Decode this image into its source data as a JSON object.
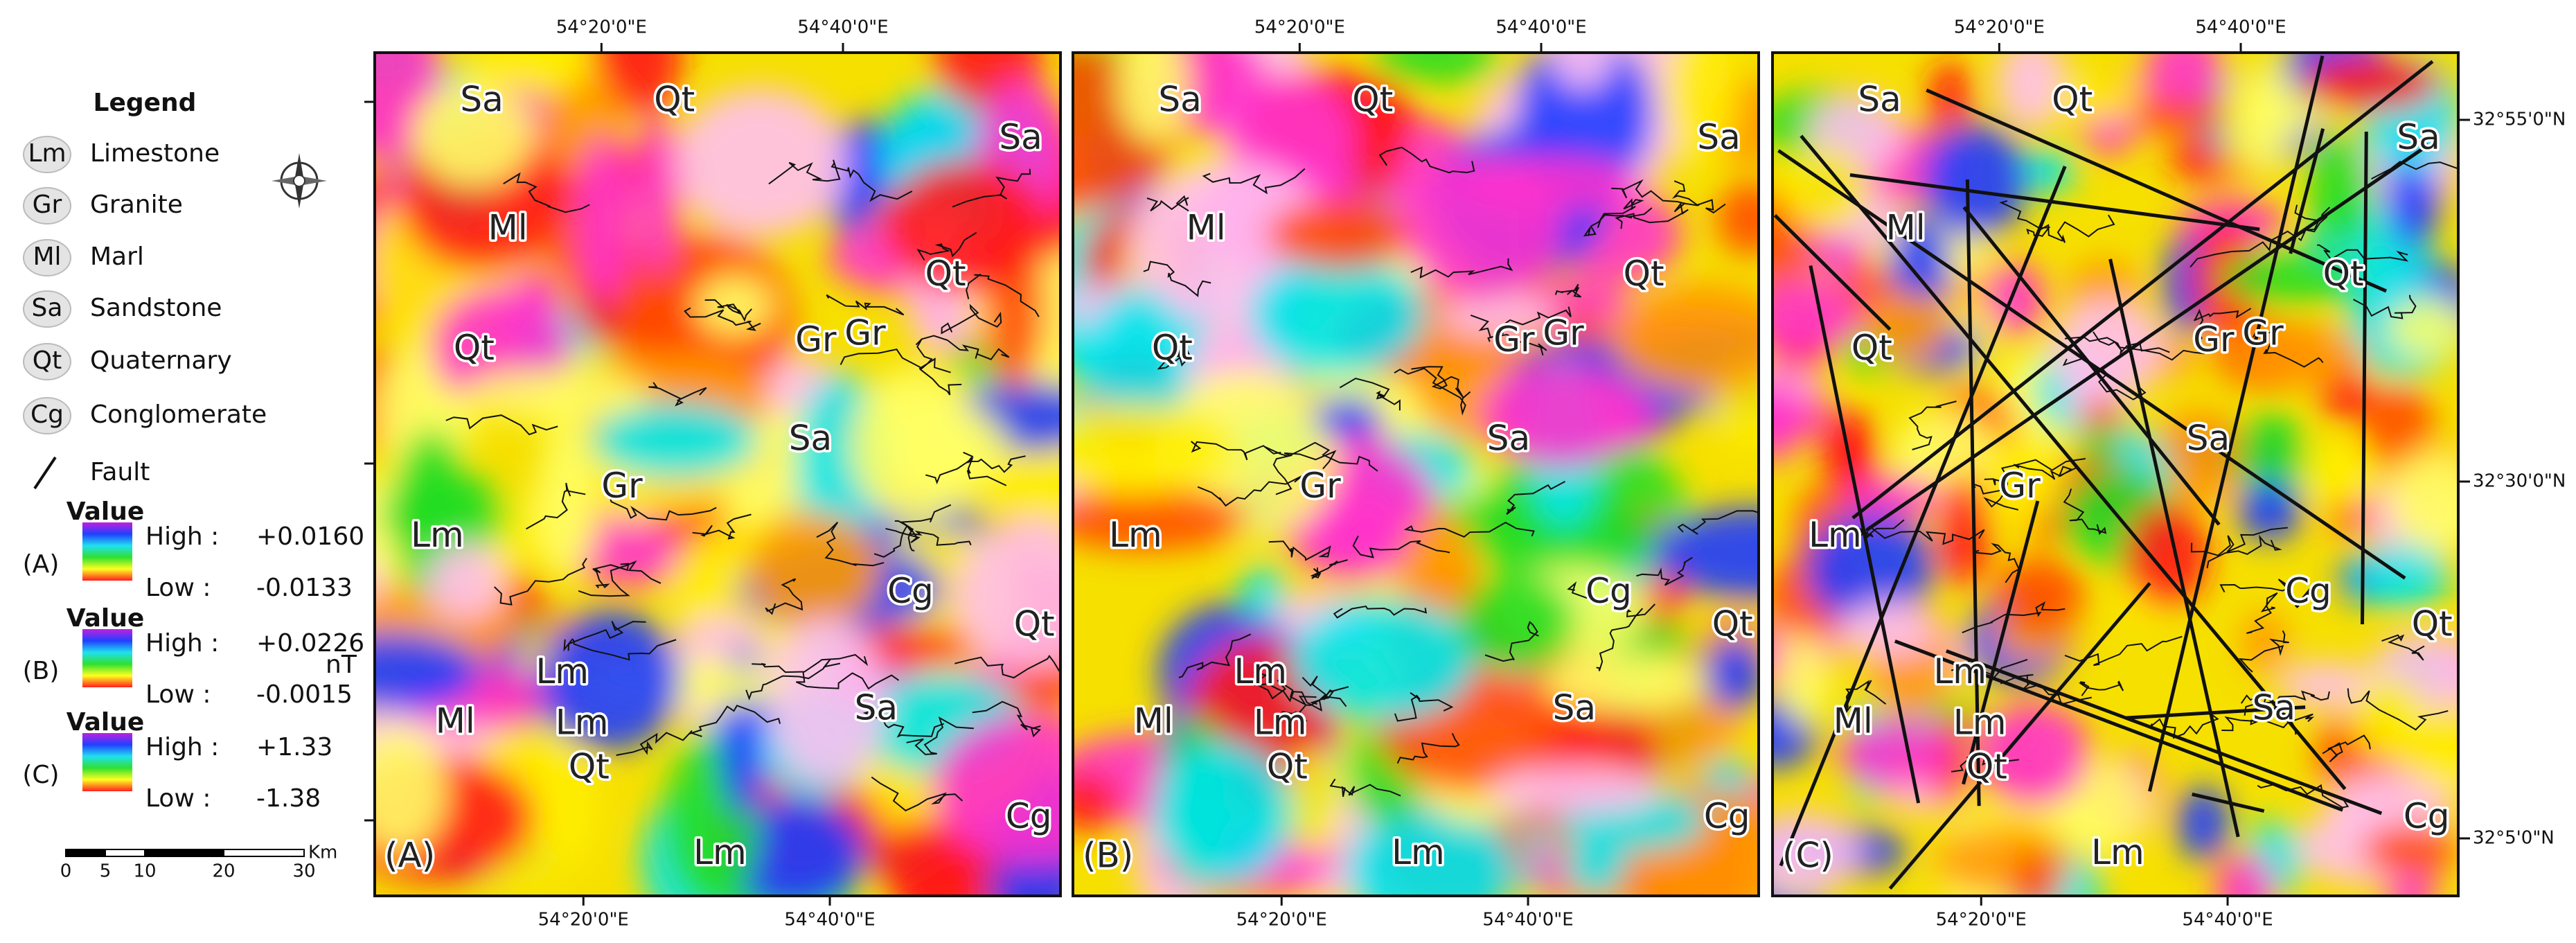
{
  "legend": {
    "title": "Legend",
    "items": [
      {
        "code": "Lm",
        "label": "Limestone"
      },
      {
        "code": "Gr",
        "label": "Granite"
      },
      {
        "code": "Ml",
        "label": "Marl"
      },
      {
        "code": "Sa",
        "label": "Sandstone"
      },
      {
        "code": "Qt",
        "label": "Quaternary"
      },
      {
        "code": "Cg",
        "label": "Conglomerate"
      }
    ],
    "fault_label": "Fault"
  },
  "ramps": [
    {
      "panel": "(A)",
      "title": "Value",
      "high_label": "High :",
      "high": "+0.0160",
      "low_label": "Low :",
      "low": "-0.0133"
    },
    {
      "panel": "(B)",
      "title": "Value",
      "high_label": "High :",
      "high": "+0.0226",
      "low_label": "Low :",
      "low": "-0.0015"
    },
    {
      "panel": "(C)",
      "title": "Value",
      "high_label": "High :",
      "high": "+1.33",
      "low_label": "Low :",
      "low": "-1.38"
    }
  ],
  "unit": "nT",
  "scale_bar": {
    "ticks": [
      "0",
      "5",
      "10",
      "20",
      "30"
    ],
    "unit": "Km"
  },
  "longitudes": [
    "54°20'0\"E",
    "54°40'0\"E"
  ],
  "latitudes": [
    "32°55'0\"N",
    "32°30'0\"N",
    "32°5'0\"N"
  ],
  "panels": [
    {
      "label": "(A)",
      "map_labels": [
        "Sa",
        "Qt",
        "Sa",
        "Ml",
        "Qt",
        "Qt",
        "Gr",
        "Gr",
        "Sa",
        "Gr",
        "Lm",
        "Cg",
        "Qt",
        "Lm",
        "Sa",
        "Ml",
        "Lm",
        "Qt",
        "Lm",
        "Cg"
      ]
    },
    {
      "label": "(B)",
      "map_labels": [
        "Sa",
        "Qt",
        "Sa",
        "Ml",
        "Qt",
        "Qt",
        "Gr",
        "Gr",
        "Sa",
        "Gr",
        "Lm",
        "Cg",
        "Qt",
        "Lm",
        "Sa",
        "Ml",
        "Lm",
        "Qt",
        "Lm",
        "Cg"
      ]
    },
    {
      "label": "(C)",
      "map_labels": [
        "Sa",
        "Qt",
        "Sa",
        "Ml",
        "Qt",
        "Qt",
        "Gr",
        "Gr",
        "Sa",
        "Gr",
        "Lm",
        "Cg",
        "Qt",
        "Lm",
        "Sa",
        "Ml",
        "Lm",
        "Qt",
        "Lm",
        "Cg"
      ]
    }
  ]
}
